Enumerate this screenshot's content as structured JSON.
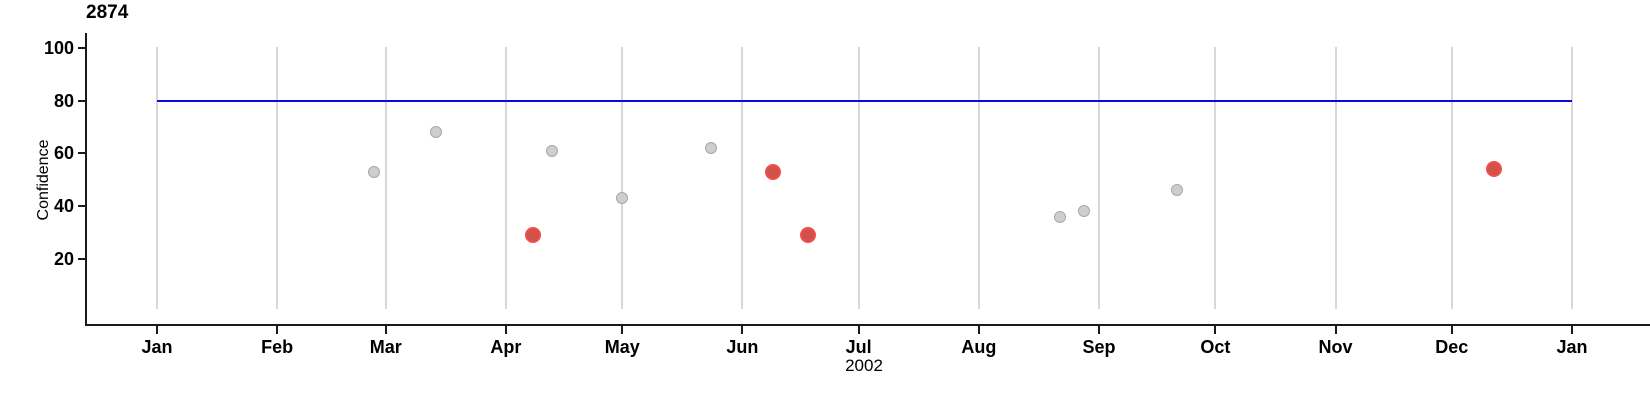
{
  "chart_data": {
    "type": "scatter",
    "title": "2874",
    "xlabel": "2002",
    "ylabel": "Confidence",
    "x_axis": {
      "tick_labels": [
        "Jan",
        "Feb",
        "Mar",
        "Apr",
        "May",
        "Jun",
        "Jul",
        "Aug",
        "Sep",
        "Oct",
        "Nov",
        "Dec",
        "Jan"
      ],
      "range": [
        "2002-01-01",
        "2003-01-01"
      ],
      "grid": true
    },
    "y_axis": {
      "tick_labels": [
        20,
        40,
        60,
        80,
        100
      ],
      "range": [
        0,
        100
      ],
      "grid": false
    },
    "reference_line": {
      "y": 80,
      "color": "#0b0bd6"
    },
    "series": [
      {
        "name": "normal",
        "fill": "#cecece",
        "stroke": "#a8a8a8",
        "size": 12,
        "stroke_width": 1.5,
        "points": [
          {
            "date": "2002-02-26",
            "value": 53
          },
          {
            "date": "2002-03-14",
            "value": 68
          },
          {
            "date": "2002-04-13",
            "value": 61
          },
          {
            "date": "2002-05-01",
            "value": 43
          },
          {
            "date": "2002-05-24",
            "value": 62
          },
          {
            "date": "2002-08-22",
            "value": 36
          },
          {
            "date": "2002-08-28",
            "value": 38
          },
          {
            "date": "2002-09-21",
            "value": 46
          }
        ]
      },
      {
        "name": "highlighted",
        "fill": "#d4504b",
        "stroke": "#ef4f47",
        "size": 16,
        "stroke_width": 2.5,
        "points": [
          {
            "date": "2002-04-08",
            "value": 29
          },
          {
            "date": "2002-06-09",
            "value": 53
          },
          {
            "date": "2002-06-18",
            "value": 29
          },
          {
            "date": "2002-12-12",
            "value": 54
          }
        ]
      }
    ],
    "colors": {
      "axis": "#1a1a1a",
      "gridline": "#d8d8d8",
      "reference_line": "#0b0bd6",
      "normal_point": "#cecece",
      "highlighted_point": "#d4504b"
    }
  }
}
